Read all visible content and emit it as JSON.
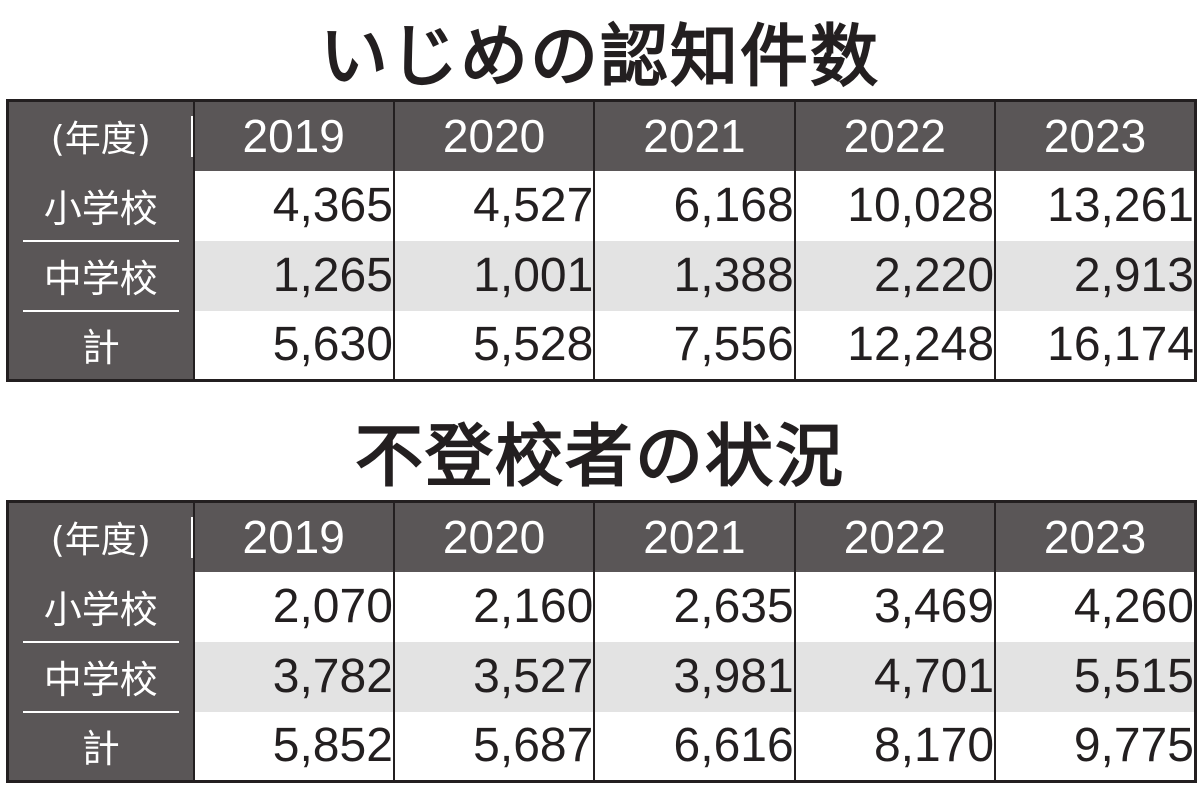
{
  "tables": [
    {
      "title": "いじめの認知件数",
      "header_label": "(年度)",
      "years": [
        "2019",
        "2020",
        "2021",
        "2022",
        "2023"
      ],
      "rows": [
        {
          "label": "小学校",
          "values": [
            "4,365",
            "4,527",
            "6,168",
            "10,028",
            "13,261"
          ]
        },
        {
          "label": "中学校",
          "values": [
            "1,265",
            "1,001",
            "1,388",
            "2,220",
            "2,913"
          ]
        },
        {
          "label": "計",
          "values": [
            "5,630",
            "5,528",
            "7,556",
            "12,248",
            "16,174"
          ]
        }
      ]
    },
    {
      "title": "不登校者の状況",
      "header_label": "(年度)",
      "years": [
        "2019",
        "2020",
        "2021",
        "2022",
        "2023"
      ],
      "rows": [
        {
          "label": "小学校",
          "values": [
            "2,070",
            "2,160",
            "2,635",
            "3,469",
            "4,260"
          ]
        },
        {
          "label": "中学校",
          "values": [
            "3,782",
            "3,527",
            "3,981",
            "4,701",
            "5,515"
          ]
        },
        {
          "label": "計",
          "values": [
            "5,852",
            "5,687",
            "6,616",
            "8,170",
            "9,775"
          ]
        }
      ]
    }
  ],
  "colors": {
    "header_bg": "#5a5657",
    "shaded_row": "#e3e3e3",
    "text": "#231f20"
  }
}
